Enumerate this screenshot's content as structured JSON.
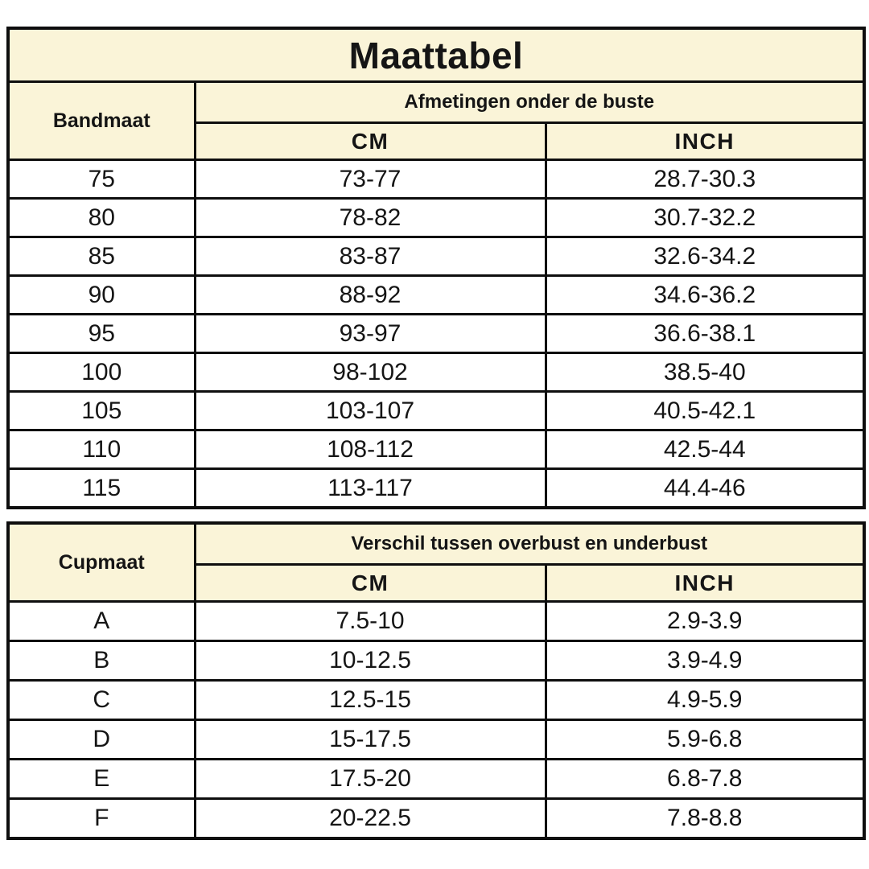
{
  "title": "Maattabel",
  "colors": {
    "header_bg": "#faf4d8",
    "border": "#0e0e0e",
    "page_bg": "#ffffff",
    "text": "#151515"
  },
  "chart_data": [
    {
      "type": "table",
      "title": "Maattabel",
      "row_header": "Bandmaat",
      "group_header": "Afmetingen onder de buste",
      "unit_headers": [
        "CM",
        "INCH"
      ],
      "columns": [
        "Bandmaat",
        "CM",
        "INCH"
      ],
      "rows": [
        [
          "75",
          "73-77",
          "28.7-30.3"
        ],
        [
          "80",
          "78-82",
          "30.7-32.2"
        ],
        [
          "85",
          "83-87",
          "32.6-34.2"
        ],
        [
          "90",
          "88-92",
          "34.6-36.2"
        ],
        [
          "95",
          "93-97",
          "36.6-38.1"
        ],
        [
          "100",
          "98-102",
          "38.5-40"
        ],
        [
          "105",
          "103-107",
          "40.5-42.1"
        ],
        [
          "110",
          "108-112",
          "42.5-44"
        ],
        [
          "115",
          "113-117",
          "44.4-46"
        ]
      ]
    },
    {
      "type": "table",
      "row_header": "Cupmaat",
      "group_header": "Verschil tussen overbust en underbust",
      "unit_headers": [
        "CM",
        "INCH"
      ],
      "columns": [
        "Cupmaat",
        "CM",
        "INCH"
      ],
      "rows": [
        [
          "A",
          "7.5-10",
          "2.9-3.9"
        ],
        [
          "B",
          "10-12.5",
          "3.9-4.9"
        ],
        [
          "C",
          "12.5-15",
          "4.9-5.9"
        ],
        [
          "D",
          "15-17.5",
          "5.9-6.8"
        ],
        [
          "E",
          "17.5-20",
          "6.8-7.8"
        ],
        [
          "F",
          "20-22.5",
          "7.8-8.8"
        ]
      ]
    }
  ]
}
